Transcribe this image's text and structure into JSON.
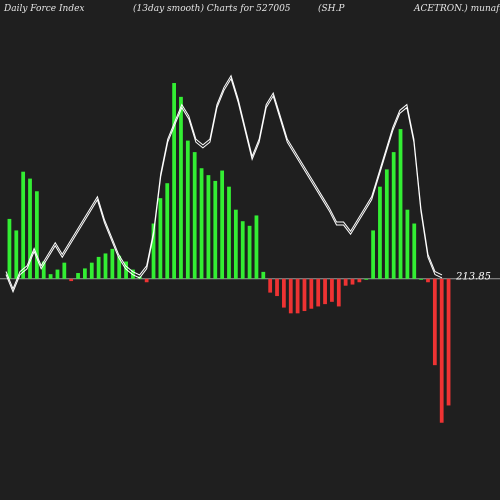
{
  "header": {
    "t1": "Daily Force  Index",
    "t2": "(13day smooth) Charts for 527005",
    "t3": "(SH.P",
    "t4": "ACETRON.) munafaso"
  },
  "colors": {
    "background": "#1f1f1f",
    "positive_bar": "#33ee33",
    "negative_bar": "#ee3333",
    "line": "#ffffff",
    "baseline": "#9a9a9a"
  },
  "chart_data": {
    "type": "bar",
    "title": "Daily Force Index (13day smooth) Charts for 527005",
    "last_value_label": "213.85",
    "bar_values": [
      52,
      42,
      93,
      87,
      76,
      15,
      4,
      8,
      14,
      -2,
      5,
      9,
      14,
      19,
      22,
      26,
      20,
      15,
      8,
      2,
      -3,
      48,
      70,
      83,
      170,
      158,
      120,
      110,
      96,
      90,
      85,
      94,
      80,
      60,
      50,
      46,
      55,
      6,
      -12,
      -15,
      -25,
      -30,
      -30,
      -28,
      -26,
      -24,
      -22,
      -20,
      -24,
      -6,
      -5,
      -3,
      0,
      42,
      80,
      95,
      110,
      130,
      60,
      48,
      0,
      -3,
      -75,
      -125,
      -110
    ],
    "line_values": [
      5,
      -10,
      5,
      10,
      25,
      10,
      20,
      30,
      20,
      30,
      40,
      50,
      60,
      70,
      50,
      35,
      20,
      10,
      5,
      2,
      10,
      40,
      90,
      120,
      135,
      150,
      140,
      120,
      115,
      120,
      150,
      165,
      175,
      155,
      130,
      105,
      120,
      150,
      160,
      140,
      120,
      110,
      100,
      90,
      80,
      70,
      60,
      48,
      48,
      40,
      50,
      60,
      70,
      90,
      110,
      130,
      145,
      150,
      120,
      60,
      20,
      5,
      2
    ],
    "ylim": [
      -140,
      190
    ]
  }
}
